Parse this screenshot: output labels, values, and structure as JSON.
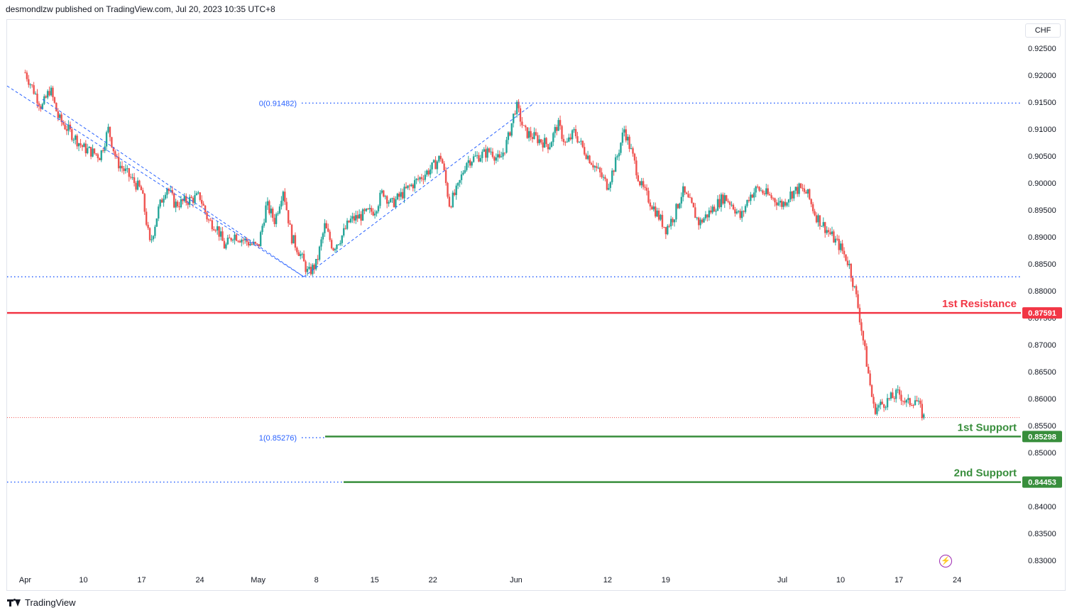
{
  "header": {
    "text": "desmondlzw published on TradingView.com, Jul 20, 2023 10:35 UTC+8"
  },
  "currency_button": {
    "label": "CHF"
  },
  "footer": {
    "brand": "TradingView"
  },
  "icons": {
    "alert": "lightning-bolt-icon",
    "logo": "tradingview-logo-icon"
  },
  "colors": {
    "up": "#26a69a",
    "down": "#ef5350",
    "resistance": "#f23645",
    "support": "#388e3c",
    "fib": "#2962ff",
    "dotted": "#2962ff",
    "text": "#131722",
    "axis_text": "#131722"
  },
  "chart_data": {
    "type": "candlestick",
    "instrument_currency": "CHF",
    "y_axis": {
      "ticks": [
        "0.92500",
        "0.92000",
        "0.91500",
        "0.91000",
        "0.90500",
        "0.90000",
        "0.89500",
        "0.89000",
        "0.88500",
        "0.88000",
        "0.87500",
        "0.87000",
        "0.86500",
        "0.86000",
        "0.85500",
        "0.85000",
        "0.84500",
        "0.84000",
        "0.83500",
        "0.83000"
      ],
      "range": [
        0.8285,
        0.9285
      ]
    },
    "x_axis": {
      "ticks": [
        "Apr",
        "10",
        "17",
        "24",
        "May",
        "8",
        "15",
        "22",
        "Jun",
        "12",
        "19",
        "Jul",
        "10",
        "17",
        "24"
      ],
      "dates": [
        "2023-04-03",
        "2023-04-10",
        "2023-04-17",
        "2023-04-24",
        "2023-05-01",
        "2023-05-08",
        "2023-05-15",
        "2023-05-22",
        "2023-06-01",
        "2023-06-12",
        "2023-06-19",
        "2023-07-03",
        "2023-07-10",
        "2023-07-17",
        "2023-07-24"
      ]
    },
    "path": [
      [
        "2023-04-03",
        0.9205
      ],
      [
        "2023-04-05",
        0.914
      ],
      [
        "2023-04-06",
        0.9175
      ],
      [
        "2023-04-07",
        0.912
      ],
      [
        "2023-04-10",
        0.9065
      ],
      [
        "2023-04-12",
        0.905
      ],
      [
        "2023-04-13",
        0.91
      ],
      [
        "2023-04-14",
        0.904
      ],
      [
        "2023-04-17",
        0.8985
      ],
      [
        "2023-04-18",
        0.8885
      ],
      [
        "2023-04-19",
        0.895
      ],
      [
        "2023-04-20",
        0.8995
      ],
      [
        "2023-04-21",
        0.896
      ],
      [
        "2023-04-24",
        0.8975
      ],
      [
        "2023-04-25",
        0.893
      ],
      [
        "2023-04-26",
        0.892
      ],
      [
        "2023-04-27",
        0.888
      ],
      [
        "2023-04-28",
        0.8905
      ],
      [
        "2023-05-01",
        0.888
      ],
      [
        "2023-05-02",
        0.896
      ],
      [
        "2023-05-03",
        0.893
      ],
      [
        "2023-05-04",
        0.899
      ],
      [
        "2023-05-05",
        0.89
      ],
      [
        "2023-05-06",
        0.887
      ],
      [
        "2023-05-07",
        0.8832
      ],
      [
        "2023-05-08",
        0.885
      ],
      [
        "2023-05-09",
        0.892
      ],
      [
        "2023-05-10",
        0.888
      ],
      [
        "2023-05-11",
        0.89
      ],
      [
        "2023-05-12",
        0.893
      ],
      [
        "2023-05-15",
        0.895
      ],
      [
        "2023-05-16",
        0.8985
      ],
      [
        "2023-05-17",
        0.896
      ],
      [
        "2023-05-18",
        0.8975
      ],
      [
        "2023-05-19",
        0.899
      ],
      [
        "2023-05-22",
        0.903
      ],
      [
        "2023-05-23",
        0.905
      ],
      [
        "2023-05-24",
        0.896
      ],
      [
        "2023-05-25",
        0.899
      ],
      [
        "2023-05-26",
        0.904
      ],
      [
        "2023-05-29",
        0.906
      ],
      [
        "2023-05-30",
        0.904
      ],
      [
        "2023-05-31",
        0.908
      ],
      [
        "2023-06-01",
        0.9145
      ],
      [
        "2023-06-02",
        0.9095
      ],
      [
        "2023-06-05",
        0.907
      ],
      [
        "2023-06-06",
        0.911
      ],
      [
        "2023-06-07",
        0.907
      ],
      [
        "2023-06-08",
        0.9095
      ],
      [
        "2023-06-09",
        0.9065
      ],
      [
        "2023-06-12",
        0.8995
      ],
      [
        "2023-06-13",
        0.904
      ],
      [
        "2023-06-14",
        0.91
      ],
      [
        "2023-06-15",
        0.905
      ],
      [
        "2023-06-16",
        0.8995
      ],
      [
        "2023-06-19",
        0.8915
      ],
      [
        "2023-06-20",
        0.894
      ],
      [
        "2023-06-21",
        0.8985
      ],
      [
        "2023-06-22",
        0.896
      ],
      [
        "2023-06-23",
        0.8925
      ],
      [
        "2023-06-26",
        0.8975
      ],
      [
        "2023-06-27",
        0.896
      ],
      [
        "2023-06-28",
        0.8935
      ],
      [
        "2023-06-29",
        0.8975
      ],
      [
        "2023-06-30",
        0.899
      ],
      [
        "2023-07-03",
        0.896
      ],
      [
        "2023-07-04",
        0.898
      ],
      [
        "2023-07-05",
        0.899
      ],
      [
        "2023-07-06",
        0.898
      ],
      [
        "2023-07-07",
        0.894
      ],
      [
        "2023-07-10",
        0.888
      ],
      [
        "2023-07-11",
        0.885
      ],
      [
        "2023-07-12",
        0.878
      ],
      [
        "2023-07-13",
        0.868
      ],
      [
        "2023-07-14",
        0.858
      ],
      [
        "2023-07-17",
        0.861
      ],
      [
        "2023-07-18",
        0.859
      ],
      [
        "2023-07-19",
        0.86
      ],
      [
        "2023-07-20",
        0.8565
      ]
    ],
    "lines": [
      {
        "name": "1st Resistance",
        "value": 0.87591,
        "label": "0.87591",
        "color": "#f23645",
        "style": "solid"
      },
      {
        "name": "1st Support",
        "value": 0.85298,
        "label": "0.85298",
        "color": "#388e3c",
        "style": "solid"
      },
      {
        "name": "2nd Support",
        "value": 0.84453,
        "label": "0.84453",
        "color": "#388e3c",
        "style": "solid"
      }
    ],
    "fib": [
      {
        "level": "0",
        "value": 0.91482,
        "text": "0(0.91482)"
      },
      {
        "level": "1",
        "value": 0.85276,
        "text": "1(0.85276)"
      }
    ],
    "horizontal_dotted": [
      0.8826
    ],
    "current_price_line": 0.8565
  }
}
